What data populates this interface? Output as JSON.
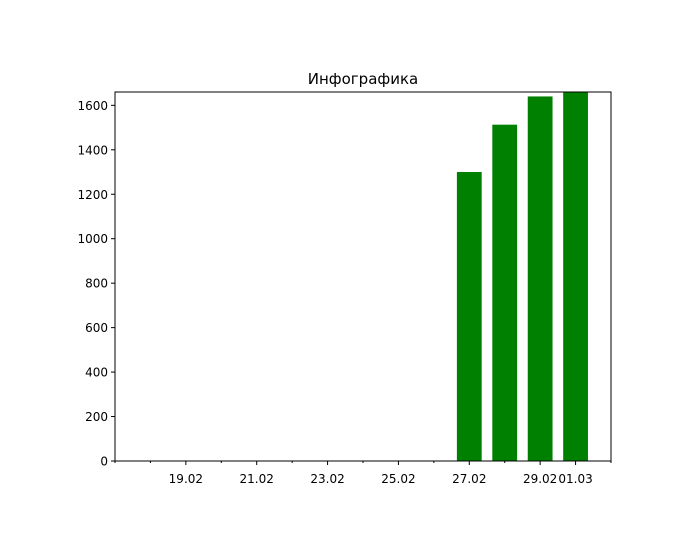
{
  "chart_data": {
    "type": "bar",
    "title": "Инфографика",
    "xlabel": "",
    "ylabel": "",
    "categories": [
      "27.02",
      "28.02",
      "29.02",
      "01.03"
    ],
    "values": [
      1300,
      1513,
      1640,
      1660
    ],
    "bar_color": "#008000",
    "x_domain": [
      "17.02",
      "02.03"
    ],
    "x_ticks": [
      "19.02",
      "21.02",
      "23.02",
      "25.02",
      "27.02",
      "29.02",
      "01.03"
    ],
    "y_ticks": [
      "0",
      "200",
      "400",
      "600",
      "800",
      "1000",
      "1200",
      "1400",
      "1600"
    ],
    "ylim": [
      0,
      1660
    ],
    "grid": false,
    "legend": "none"
  }
}
